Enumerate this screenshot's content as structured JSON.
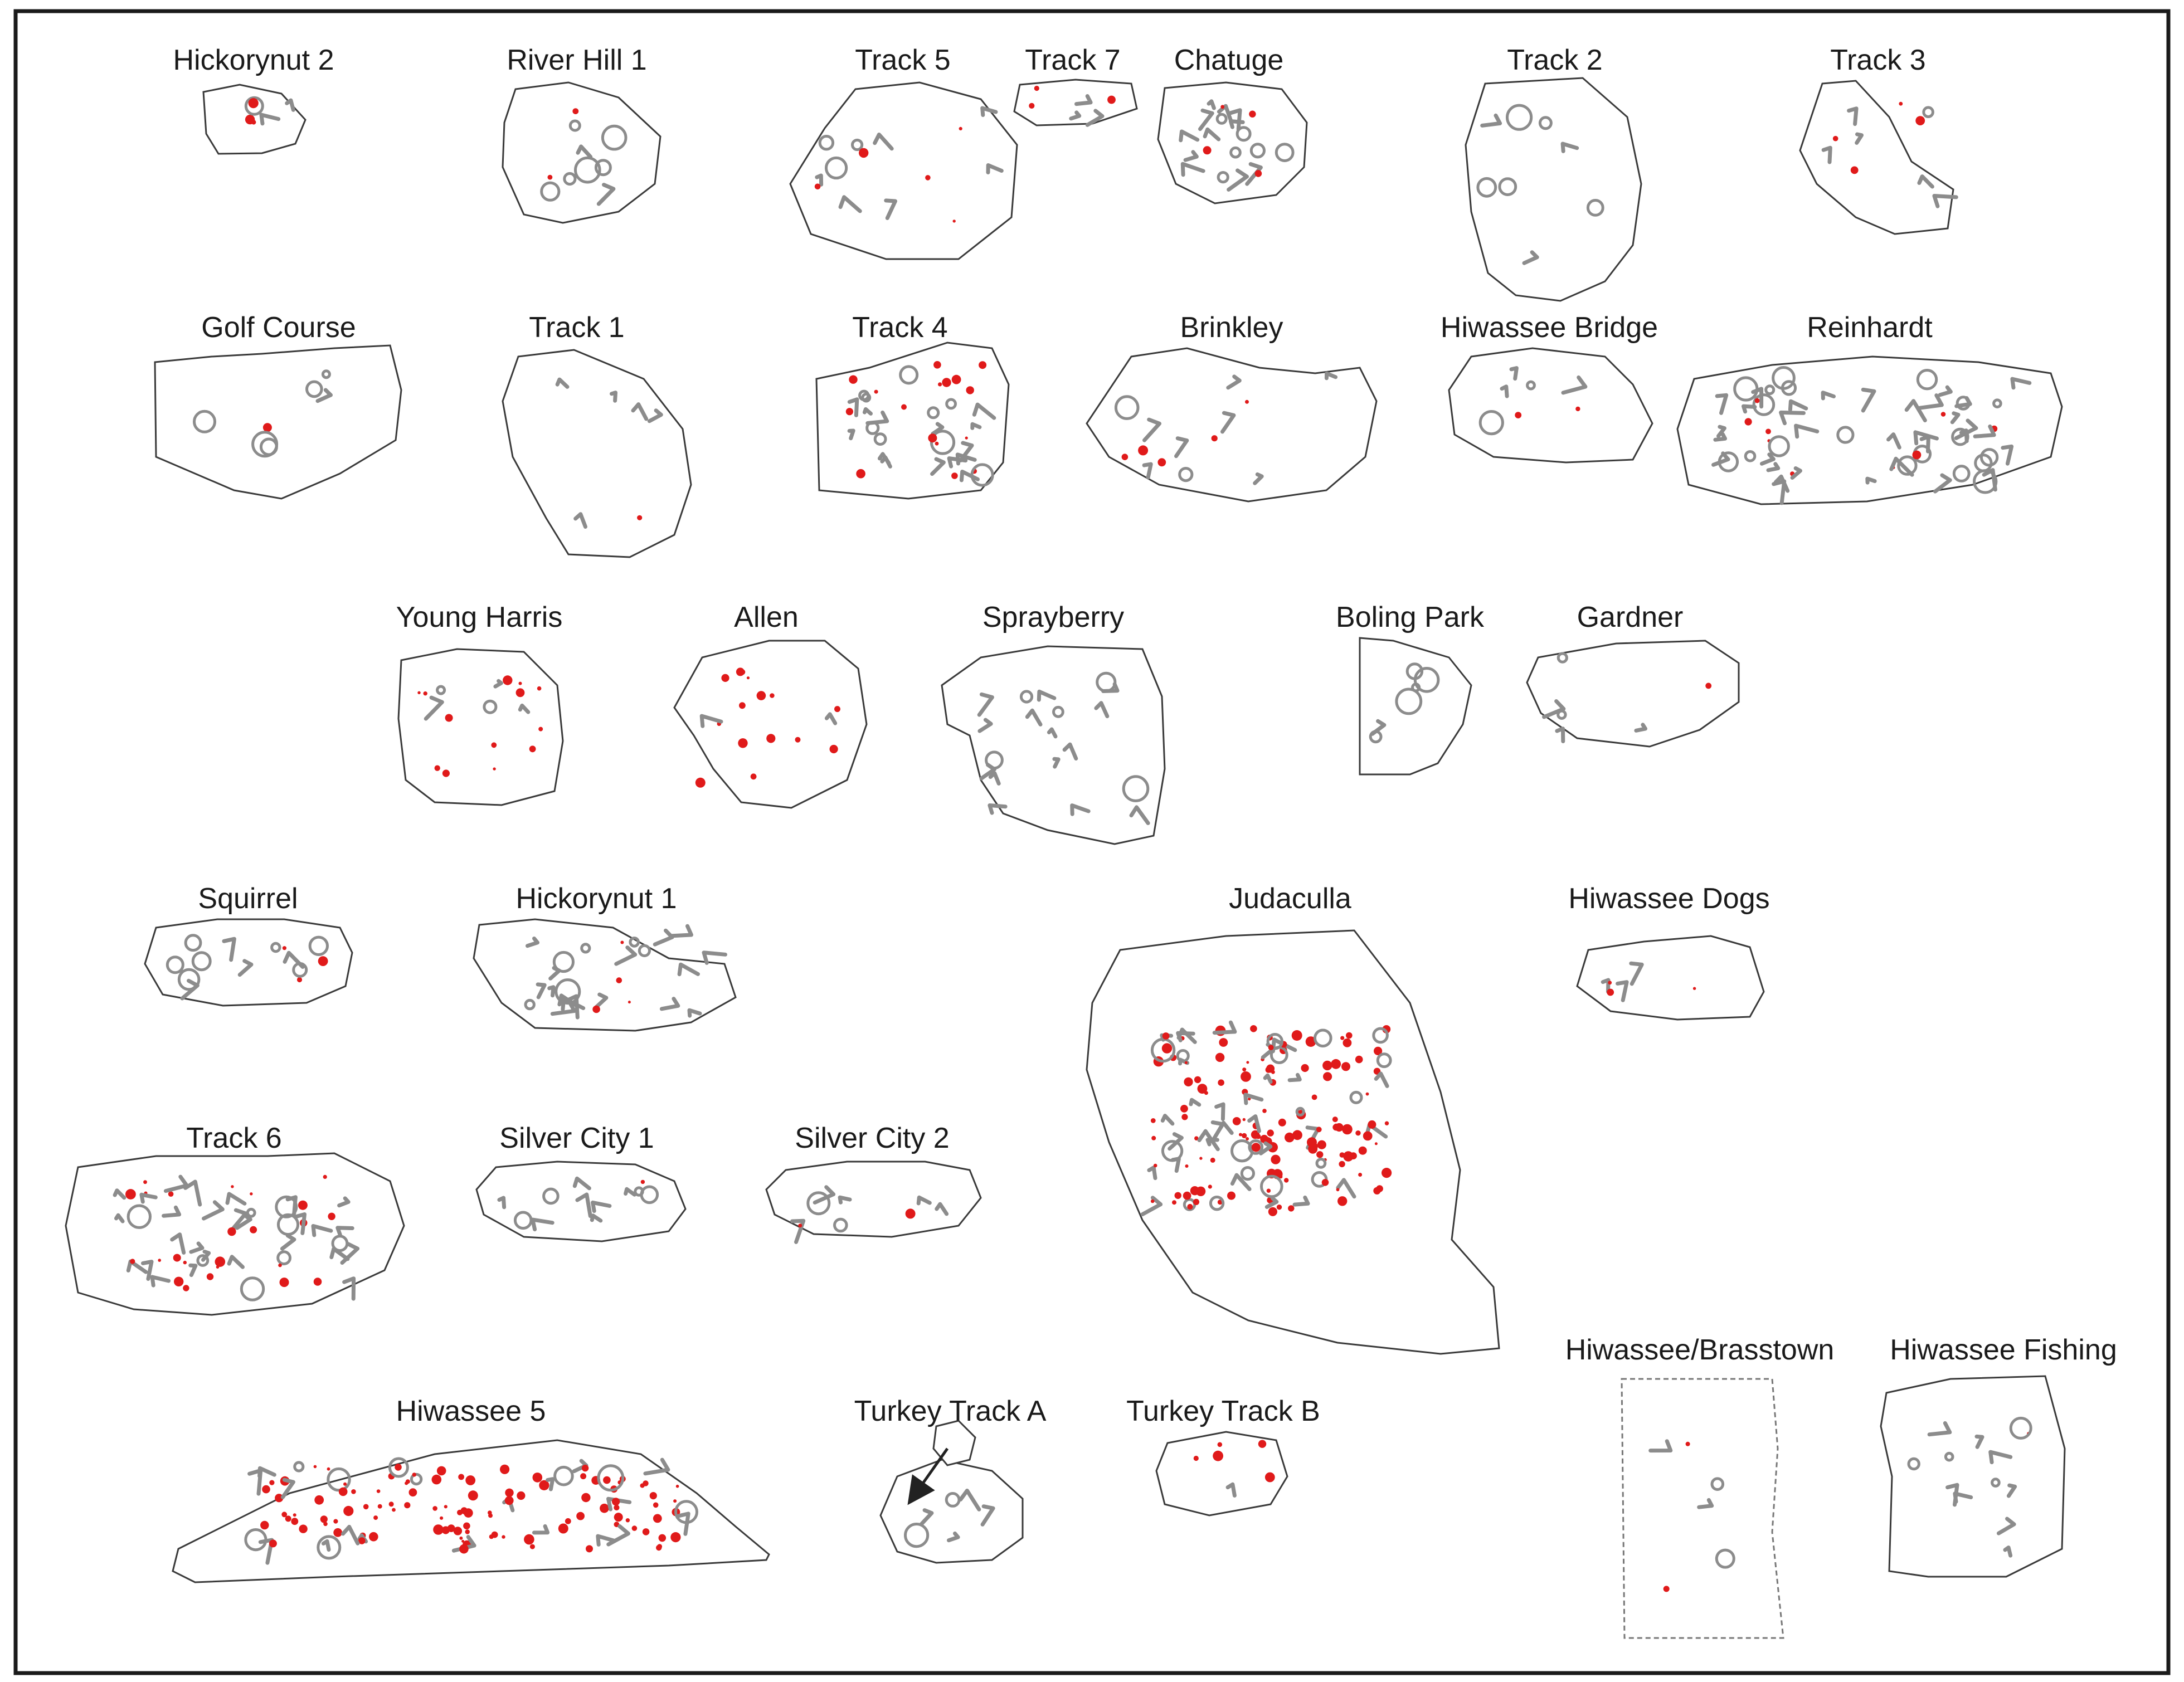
{
  "figure": {
    "background": "#ffffff",
    "colors": {
      "outline": "#3a3a3a",
      "petroglyph_gray": "#8c8c8c",
      "cupule_red": "#e01a1a",
      "label_text": "#1a1a1a"
    },
    "boulders": [
      {
        "id": "hickorynut-2",
        "label": "Hickorynut 2"
      },
      {
        "id": "river-hill-1",
        "label": "River Hill 1"
      },
      {
        "id": "track-5",
        "label": "Track 5"
      },
      {
        "id": "track-7",
        "label": "Track 7"
      },
      {
        "id": "chatuge",
        "label": "Chatuge"
      },
      {
        "id": "track-2",
        "label": "Track 2"
      },
      {
        "id": "track-3",
        "label": "Track 3"
      },
      {
        "id": "golf-course",
        "label": "Golf Course"
      },
      {
        "id": "track-1",
        "label": "Track 1"
      },
      {
        "id": "track-4",
        "label": "Track 4"
      },
      {
        "id": "brinkley",
        "label": "Brinkley"
      },
      {
        "id": "hiwassee-bridge",
        "label": "Hiwassee Bridge"
      },
      {
        "id": "reinhardt",
        "label": "Reinhardt"
      },
      {
        "id": "young-harris",
        "label": "Young Harris"
      },
      {
        "id": "allen",
        "label": "Allen"
      },
      {
        "id": "sprayberry",
        "label": "Sprayberry"
      },
      {
        "id": "boling-park",
        "label": "Boling Park"
      },
      {
        "id": "gardner",
        "label": "Gardner"
      },
      {
        "id": "squirrel",
        "label": "Squirrel"
      },
      {
        "id": "hickorynut-1",
        "label": "Hickorynut 1"
      },
      {
        "id": "judaculla",
        "label": "Judaculla"
      },
      {
        "id": "hiwassee-dogs",
        "label": "Hiwassee Dogs"
      },
      {
        "id": "track-6",
        "label": "Track 6"
      },
      {
        "id": "silver-city-1",
        "label": "Silver City 1"
      },
      {
        "id": "silver-city-2",
        "label": "Silver City 2"
      },
      {
        "id": "hiwassee-brasstown",
        "label": "Hiwassee/Brasstown"
      },
      {
        "id": "hiwassee-fishing",
        "label": "Hiwassee Fishing"
      },
      {
        "id": "hiwassee-5",
        "label": "Hiwassee 5"
      },
      {
        "id": "turkey-track-a",
        "label": "Turkey Track A"
      },
      {
        "id": "turkey-track-b",
        "label": "Turkey Track B"
      }
    ]
  }
}
